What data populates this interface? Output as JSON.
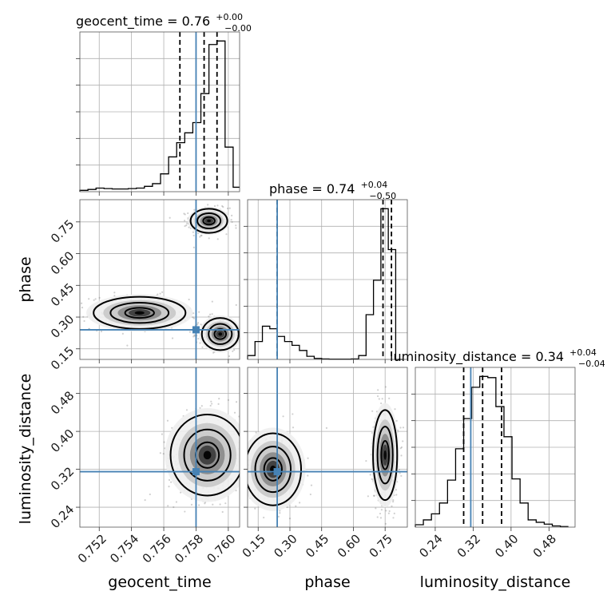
{
  "colors": {
    "truth": "#4682b4",
    "contour": "#000000",
    "samples": "#555555",
    "grid": "#b0b0b0"
  },
  "chart_data": {
    "type": "corner",
    "parameters": [
      "geocent_time",
      "phase",
      "luminosity_distance"
    ],
    "truths": {
      "geocent_time": 0.758,
      "phase": 0.24,
      "luminosity_distance": 0.315
    },
    "ranges": {
      "geocent_time": [
        0.7508,
        0.7607
      ],
      "phase": [
        0.1,
        0.855
      ],
      "luminosity_distance": [
        0.198,
        0.535
      ]
    },
    "ticks": {
      "geocent_time": [
        "0.752",
        "0.754",
        "0.756",
        "0.758",
        "0.760"
      ],
      "phase": [
        "0.15",
        "0.30",
        "0.45",
        "0.60",
        "0.75"
      ],
      "luminosity_distance": [
        "0.24",
        "0.32",
        "0.40",
        "0.48"
      ]
    },
    "xlabels": {
      "geocent_time": "geocent_time",
      "phase": "phase",
      "luminosity_distance": "luminosity_distance"
    },
    "ylabels": {
      "phase": "phase",
      "luminosity_distance": "luminosity_distance"
    },
    "grid": true,
    "titles": [
      {
        "name": "geocent_time = 0.76",
        "plus": "+0.00",
        "minus": "−0.00"
      },
      {
        "name": "phase = 0.74",
        "plus": "+0.04",
        "minus": "−0.50"
      },
      {
        "name": "luminosity_distance = 0.34",
        "plus": "+0.04",
        "minus": "−0.04"
      }
    ],
    "marginals": [
      {
        "param": "geocent_time",
        "bin_edges": [
          0.7508,
          0.7513,
          0.7518,
          0.7523,
          0.7528,
          0.7533,
          0.7538,
          0.7543,
          0.7548,
          0.7553,
          0.7558,
          0.7563,
          0.7568,
          0.7573,
          0.7578,
          0.7583,
          0.7588,
          0.7593,
          0.7598,
          0.7603,
          0.7608
        ],
        "counts": [
          3,
          5,
          8,
          7,
          6,
          6,
          7,
          8,
          12,
          18,
          40,
          78,
          110,
          132,
          155,
          220,
          330,
          338,
          100,
          10
        ],
        "quantiles": [
          0.757,
          0.7585,
          0.7593
        ]
      },
      {
        "param": "phase",
        "bin_edges": [
          0.1,
          0.135,
          0.17,
          0.205,
          0.24,
          0.275,
          0.31,
          0.345,
          0.38,
          0.415,
          0.45,
          0.485,
          0.52,
          0.555,
          0.59,
          0.625,
          0.66,
          0.695,
          0.73,
          0.765,
          0.8,
          0.835
        ],
        "counts": [
          15,
          70,
          130,
          120,
          90,
          70,
          55,
          35,
          12,
          4,
          2,
          1,
          1,
          1,
          2,
          15,
          175,
          310,
          590,
          430,
          0
        ],
        "quantiles": [
          0.24,
          0.74,
          0.78
        ]
      },
      {
        "param": "luminosity_distance",
        "bin_edges": [
          0.198,
          0.215,
          0.232,
          0.249,
          0.266,
          0.283,
          0.3,
          0.317,
          0.334,
          0.351,
          0.368,
          0.385,
          0.402,
          0.419,
          0.436,
          0.453,
          0.47,
          0.487,
          0.504,
          0.521
        ],
        "counts": [
          4,
          12,
          22,
          40,
          78,
          130,
          180,
          232,
          250,
          248,
          200,
          150,
          80,
          40,
          12,
          8,
          5,
          2,
          1
        ],
        "quantiles": [
          0.3,
          0.34,
          0.38
        ]
      }
    ],
    "scatter_panels": [
      {
        "x": "geocent_time",
        "y": "phase",
        "modes": [
          {
            "x": 0.7588,
            "y": 0.755,
            "sx": 0.0006,
            "sy": 0.03
          },
          {
            "x": 0.7545,
            "y": 0.32,
            "sx": 0.0015,
            "sy": 0.04
          },
          {
            "x": 0.7595,
            "y": 0.22,
            "sx": 0.0006,
            "sy": 0.04
          }
        ]
      },
      {
        "x": "geocent_time",
        "y": "luminosity_distance",
        "modes": [
          {
            "x": 0.7587,
            "y": 0.35,
            "sx": 0.0012,
            "sy": 0.045
          }
        ]
      },
      {
        "x": "phase",
        "y": "luminosity_distance",
        "modes": [
          {
            "x": 0.75,
            "y": 0.35,
            "sx": 0.03,
            "sy": 0.05
          },
          {
            "x": 0.22,
            "y": 0.32,
            "sx": 0.07,
            "sy": 0.04
          }
        ]
      }
    ]
  }
}
